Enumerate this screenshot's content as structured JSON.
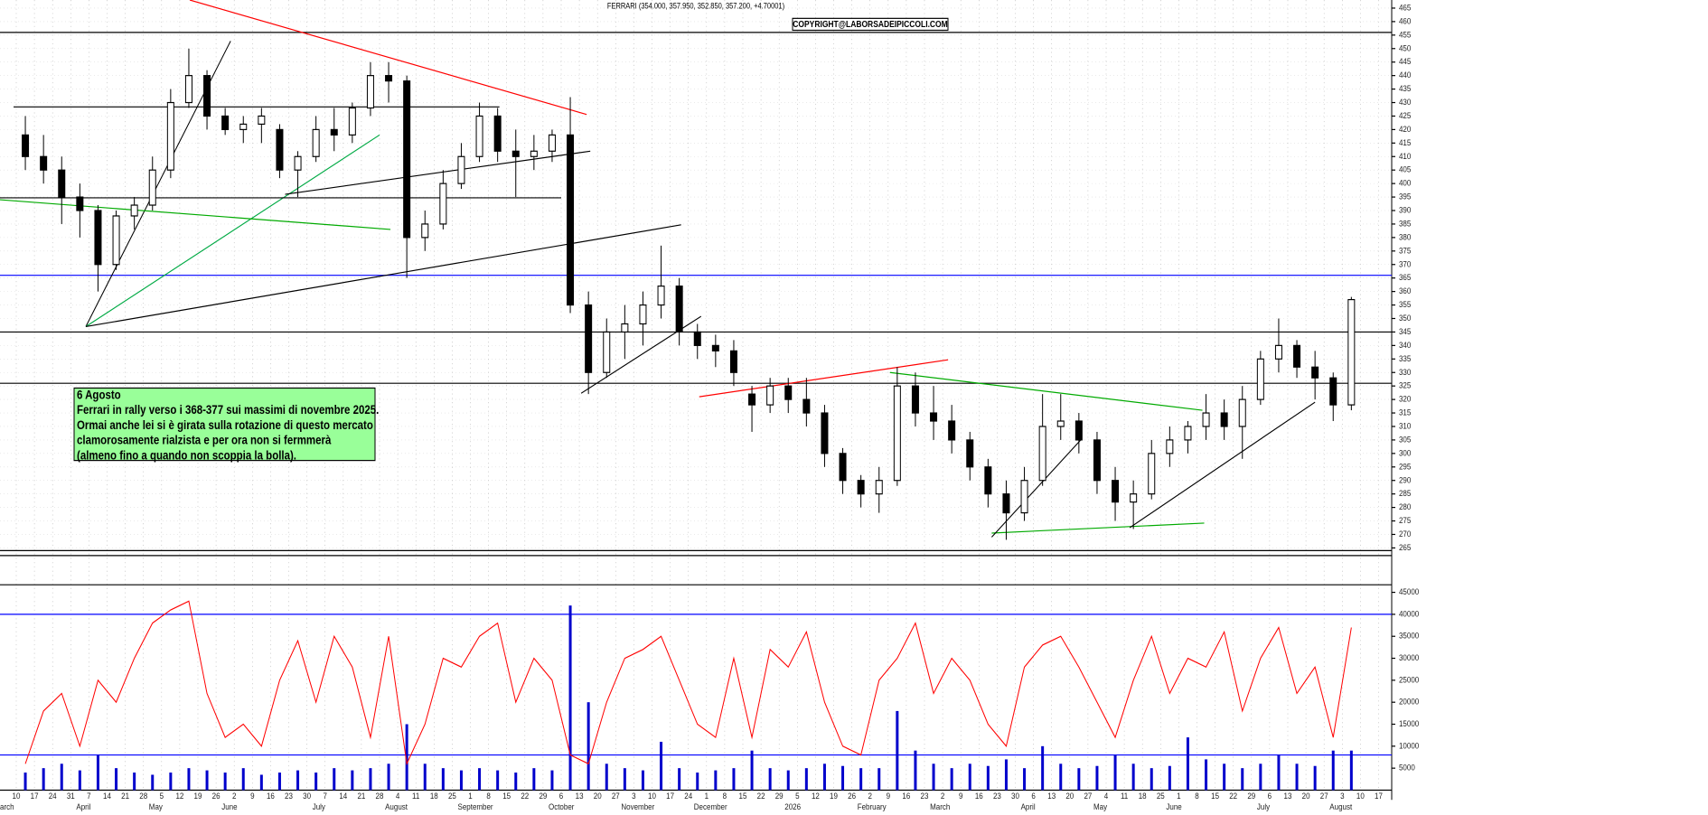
{
  "chart_data": {
    "type": "candlestick",
    "title": "FERRARI (354.000, 357.950, 352.850, 357.200, +4.70001)",
    "copyright": "COPYRIGHT@LABORSADEIPICCOLI.COM",
    "annotation": [
      "6 Agosto",
      "Ferrari in rally verso i 368-377 sui massimi di novembre 2025.",
      "Ormai anche lei si è girata sulla rotazione di questo mercato",
      "clamorosamente rialzista e per ora non si fermmerà",
      "(almeno fino a quando non scoppia la bolla)."
    ],
    "x_days": [
      10,
      17,
      24,
      31,
      7,
      14,
      21,
      28,
      5,
      12,
      19,
      26,
      2,
      9,
      16,
      23,
      30,
      7,
      14,
      21,
      28,
      4,
      11,
      18,
      25,
      1,
      8,
      15,
      22,
      29,
      6,
      13,
      20,
      27,
      3,
      10,
      17,
      24,
      1,
      8,
      15,
      22,
      29,
      5,
      12,
      19,
      26,
      2,
      9,
      16,
      23,
      2,
      9,
      16,
      23,
      30,
      6,
      13,
      20,
      27,
      4,
      11,
      18,
      25,
      1,
      8,
      15,
      22,
      29,
      6,
      13,
      20,
      27,
      3,
      10,
      17
    ],
    "months": [
      "arch",
      "April",
      "May",
      "June",
      "July",
      "August",
      "September",
      "October",
      "November",
      "December",
      "2026",
      "February",
      "March",
      "April",
      "May",
      "June",
      "July",
      "August"
    ],
    "open": [
      418,
      410,
      405,
      395,
      390,
      370,
      388,
      392,
      405,
      430,
      440,
      425,
      420,
      422,
      420,
      405,
      410,
      420,
      418,
      428,
      440,
      438,
      380,
      385,
      400,
      410,
      425,
      412,
      410,
      412,
      418,
      355,
      330,
      345,
      348,
      355,
      362,
      345,
      340,
      338,
      322,
      318,
      325,
      320,
      315,
      300,
      290,
      285,
      290,
      325,
      315,
      312,
      305,
      295,
      285,
      278,
      290,
      310,
      312,
      305,
      290,
      282,
      285,
      300,
      305,
      310,
      315,
      310,
      320,
      335,
      340,
      332,
      328,
      318,
      null,
      null
    ],
    "high": [
      425,
      418,
      410,
      400,
      392,
      390,
      395,
      410,
      435,
      450,
      442,
      428,
      425,
      428,
      422,
      412,
      425,
      428,
      430,
      445,
      445,
      440,
      390,
      405,
      415,
      430,
      428,
      420,
      418,
      420,
      432,
      360,
      350,
      355,
      360,
      377,
      365,
      348,
      344,
      342,
      325,
      328,
      328,
      328,
      318,
      302,
      292,
      295,
      332,
      330,
      325,
      318,
      308,
      298,
      290,
      295,
      322,
      322,
      315,
      308,
      295,
      290,
      305,
      310,
      312,
      322,
      320,
      325,
      338,
      350,
      342,
      338,
      330,
      358,
      null,
      null
    ],
    "low": [
      405,
      400,
      385,
      380,
      360,
      368,
      383,
      390,
      402,
      428,
      420,
      418,
      415,
      415,
      402,
      395,
      408,
      412,
      415,
      425,
      430,
      365,
      375,
      383,
      398,
      408,
      408,
      395,
      405,
      408,
      352,
      322,
      328,
      335,
      340,
      350,
      340,
      335,
      332,
      325,
      308,
      315,
      315,
      310,
      295,
      285,
      280,
      278,
      288,
      310,
      305,
      300,
      290,
      280,
      268,
      275,
      288,
      305,
      300,
      285,
      275,
      272,
      283,
      295,
      300,
      305,
      305,
      298,
      318,
      330,
      328,
      320,
      312,
      316,
      null,
      null
    ],
    "close": [
      410,
      405,
      395,
      390,
      370,
      388,
      392,
      405,
      430,
      440,
      425,
      420,
      422,
      425,
      405,
      410,
      420,
      418,
      428,
      440,
      438,
      380,
      385,
      400,
      410,
      425,
      412,
      410,
      412,
      418,
      355,
      330,
      345,
      348,
      355,
      362,
      345,
      340,
      338,
      330,
      318,
      325,
      320,
      315,
      300,
      290,
      285,
      290,
      325,
      315,
      312,
      305,
      295,
      285,
      278,
      290,
      310,
      312,
      305,
      290,
      282,
      285,
      300,
      305,
      310,
      315,
      310,
      320,
      335,
      340,
      332,
      328,
      318,
      357,
      null,
      null
    ],
    "ylim": [
      262,
      468
    ],
    "yticks": [
      265,
      270,
      275,
      280,
      285,
      290,
      295,
      300,
      305,
      310,
      315,
      320,
      325,
      330,
      335,
      340,
      345,
      350,
      355,
      360,
      365,
      370,
      375,
      380,
      385,
      390,
      395,
      400,
      405,
      410,
      415,
      420,
      425,
      430,
      435,
      440,
      445,
      450,
      455,
      460,
      465
    ],
    "levels": [
      {
        "value": 456,
        "color": "#000000"
      },
      {
        "value": 366,
        "color": "#0000ff"
      },
      {
        "value": 345,
        "color": "#000000"
      },
      {
        "value": 326,
        "color": "#000000"
      },
      {
        "value": 264,
        "color": "#000000"
      }
    ],
    "trendlines": [
      {
        "color": "#ff0000",
        "points": [
          [
            9.55,
            468
          ],
          [
            31.4,
            425.6
          ]
        ]
      },
      {
        "color": "#000000",
        "points": [
          [
            3.83,
            347
          ],
          [
            11.8,
            452.8
          ]
        ]
      },
      {
        "color": "#00aa44",
        "points": [
          [
            3.83,
            347
          ],
          [
            20,
            418
          ]
        ]
      },
      {
        "color": "#000000",
        "points": [
          [
            3.83,
            347
          ],
          [
            20.6,
            366.3
          ]
        ]
      },
      {
        "color": "#000000",
        "points": [
          [
            20.6,
            366.3
          ],
          [
            36.6,
            384.7
          ]
        ]
      },
      {
        "color": "#00aa00",
        "points": [
          [
            -0.9,
            394
          ],
          [
            20.6,
            383
          ]
        ]
      },
      {
        "color": "#000000",
        "points": [
          [
            -0.15,
            428.4
          ],
          [
            26.6,
            428.4
          ]
        ]
      },
      {
        "color": "#000000",
        "points": [
          [
            -0.9,
            394.7
          ],
          [
            30,
            394.7
          ]
        ]
      },
      {
        "color": "#000000",
        "points": [
          [
            14.8,
            396
          ],
          [
            31.6,
            412
          ]
        ]
      },
      {
        "color": "#000000",
        "points": [
          [
            31.1,
            322.3
          ],
          [
            37.7,
            350.8
          ]
        ]
      },
      {
        "color": "#ff0000",
        "points": [
          [
            37.6,
            321
          ],
          [
            51.3,
            334.7
          ]
        ]
      },
      {
        "color": "#00aa00",
        "points": [
          [
            48.1,
            330
          ],
          [
            65.3,
            316
          ]
        ]
      },
      {
        "color": "#00aa00",
        "points": [
          [
            53.7,
            270.5
          ],
          [
            65.4,
            274.2
          ]
        ]
      },
      {
        "color": "#000000",
        "points": [
          [
            53.7,
            269
          ],
          [
            58.6,
            305
          ]
        ]
      },
      {
        "color": "#000000",
        "points": [
          [
            61.3,
            272.5
          ],
          [
            71.5,
            319
          ]
        ]
      }
    ],
    "volume": {
      "color": "#0000cc",
      "values": [
        4000,
        5000,
        6000,
        4500,
        8000,
        5000,
        4000,
        3500,
        4000,
        5000,
        4500,
        4000,
        5000,
        3500,
        4000,
        4500,
        4000,
        5000,
        4500,
        5000,
        6000,
        15000,
        6000,
        5000,
        4500,
        5000,
        4500,
        4000,
        5000,
        4500,
        42000,
        20000,
        6000,
        5000,
        4500,
        11000,
        5000,
        4000,
        4500,
        5000,
        9000,
        5000,
        4500,
        5000,
        6000,
        5500,
        5000,
        5000,
        18000,
        9000,
        6000,
        5000,
        6000,
        5500,
        7000,
        5000,
        10000,
        6000,
        5000,
        5500,
        8000,
        6000,
        5000,
        5500,
        12000,
        7000,
        6000,
        5000,
        6000,
        8000,
        6000,
        5500,
        9000,
        9000,
        null,
        null
      ],
      "ylim": [
        0,
        45000
      ],
      "yticks": [
        5000,
        10000,
        15000,
        20000,
        25000,
        30000,
        35000,
        40000,
        45000
      ],
      "levels": [
        40000,
        8000
      ]
    },
    "oscillator": {
      "color": "#ff0000",
      "values": [
        6000,
        18000,
        22000,
        10000,
        25000,
        20000,
        30000,
        38000,
        41000,
        43000,
        22000,
        12000,
        15000,
        10000,
        25000,
        34000,
        20000,
        35000,
        28000,
        12000,
        35000,
        6000,
        15000,
        30000,
        28000,
        35000,
        38000,
        20000,
        30000,
        25000,
        8000,
        6000,
        20000,
        30000,
        32000,
        35000,
        25000,
        15000,
        12000,
        30000,
        12000,
        32000,
        28000,
        36000,
        20000,
        10000,
        8000,
        25000,
        30000,
        38000,
        22000,
        30000,
        25000,
        15000,
        10000,
        28000,
        33000,
        35000,
        28000,
        20000,
        12000,
        25000,
        35000,
        22000,
        30000,
        28000,
        36000,
        18000,
        30000,
        37000,
        22000,
        28000,
        12000,
        37000,
        null,
        null
      ]
    }
  }
}
